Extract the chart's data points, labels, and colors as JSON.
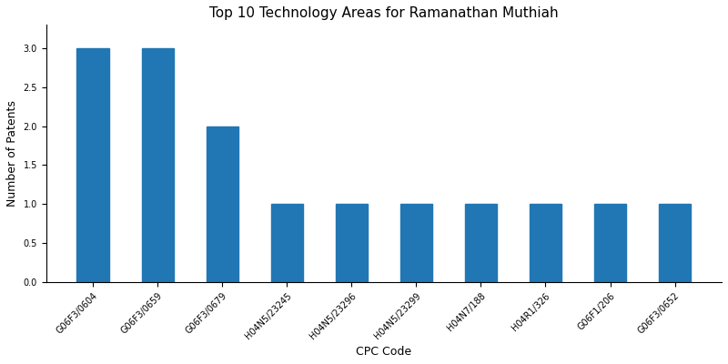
{
  "title": "Top 10 Technology Areas for Ramanathan Muthiah",
  "xlabel": "CPC Code",
  "ylabel": "Number of Patents",
  "categories": [
    "G06F3/0604",
    "G06F3/0659",
    "G06F3/0679",
    "H04N5/23245",
    "H04N5/23296",
    "H04N5/23299",
    "H04N7/188",
    "H04R1/326",
    "G06F1/206",
    "G06F3/0652"
  ],
  "values": [
    3,
    3,
    2,
    1,
    1,
    1,
    1,
    1,
    1,
    1
  ],
  "bar_color": "#2077b4",
  "ylim": [
    0,
    3.3
  ],
  "yticks": [
    0.0,
    0.5,
    1.0,
    1.5,
    2.0,
    2.5,
    3.0
  ],
  "figsize": [
    8,
    4
  ],
  "dpi": 100,
  "title_fontsize": 11,
  "axis_label_fontsize": 9,
  "tick_fontsize": 7,
  "rotation": 45,
  "bar_width": 0.5
}
